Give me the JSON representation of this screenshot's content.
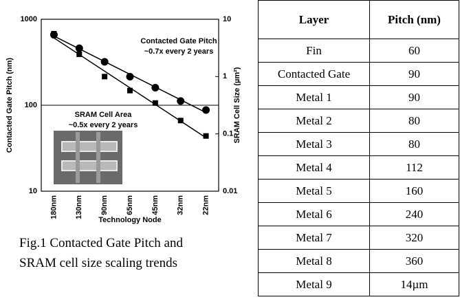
{
  "chart_data": {
    "type": "line",
    "categories": [
      "180nm",
      "130nm",
      "90nm",
      "65nm",
      "45nm",
      "32nm",
      "22nm"
    ],
    "series": [
      {
        "color": "#000000",
        "marker": "circle",
        "values": [
          660,
          460,
          320,
          215,
          160,
          112,
          88
        ]
      },
      {
        "color": "#000000",
        "marker": "square",
        "axis": "y2",
        "values": [
          5.6,
          2.45,
          1.0,
          0.57,
          0.346,
          0.171,
          0.092
        ]
      }
    ],
    "y_label": "Contacted Gate Pitch (nm)",
    "y2_label": "SRAM Cell Size (µm²)",
    "x_label": "Technology Node",
    "ylim": [
      10,
      1000
    ],
    "yticks": [
      10,
      100,
      1000
    ],
    "y_log": true,
    "y2lim": [
      0.01,
      10
    ],
    "y2ticks": [
      0.01,
      0.1,
      1,
      10
    ],
    "y2_log": true,
    "grid": true,
    "annotations": [
      "Contacted Gate Pitch",
      "~0.7x every 2 years",
      "SRAM Cell Area",
      "~0.5x every 2 years"
    ]
  },
  "caption": [
    "Fig.1 Contacted Gate Pitch and",
    "SRAM cell size scaling trends"
  ],
  "table": {
    "header": [
      "Layer",
      "Pitch (nm)"
    ],
    "rows": [
      [
        "Fin",
        "60"
      ],
      [
        "Contacted Gate",
        "90"
      ],
      [
        "Metal 1",
        "90"
      ],
      [
        "Metal 2",
        "80"
      ],
      [
        "Metal 3",
        "80"
      ],
      [
        "Metal 4",
        "112"
      ],
      [
        "Metal 5",
        "160"
      ],
      [
        "Metal 6",
        "240"
      ],
      [
        "Metal 7",
        "320"
      ],
      [
        "Metal 8",
        "360"
      ],
      [
        "Metal 9",
        "14µm"
      ]
    ]
  }
}
